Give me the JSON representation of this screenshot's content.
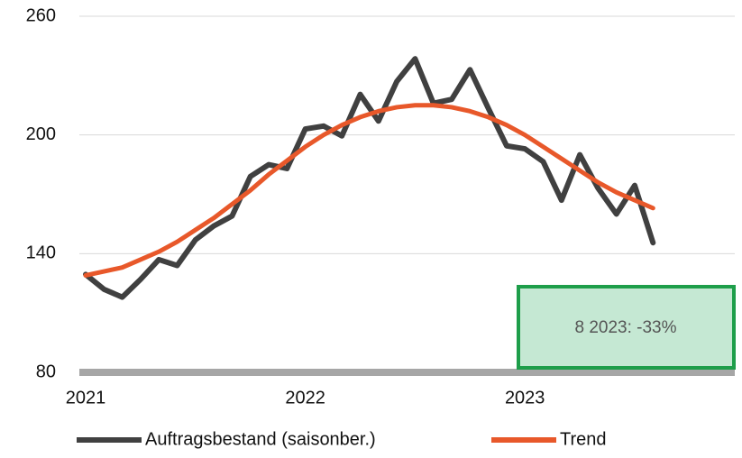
{
  "chart_data": {
    "type": "line",
    "categories": [
      "2021",
      null,
      null,
      null,
      null,
      null,
      null,
      null,
      null,
      null,
      null,
      null,
      "2022",
      null,
      null,
      null,
      null,
      null,
      null,
      null,
      null,
      null,
      null,
      null,
      "2023",
      null,
      null,
      null,
      null,
      null,
      null,
      null
    ],
    "series": [
      {
        "name": "Auftragsbestand (saisonber.)",
        "color": "#404040",
        "values": [
          129.5,
          122,
          118,
          127,
          137,
          134,
          147,
          154,
          159,
          179,
          185,
          183,
          203,
          204.5,
          199.5,
          220.5,
          207,
          227,
          238.5,
          216,
          218,
          233,
          213.5,
          194.5,
          193,
          186.5,
          167,
          190,
          173,
          160,
          174.5,
          145.5
        ]
      },
      {
        "name": "Trend",
        "color": "#e8582a",
        "values": [
          129,
          131,
          133,
          137,
          141,
          146,
          152,
          158,
          165,
          172,
          180,
          187,
          194,
          200,
          205,
          209,
          212,
          214,
          215,
          215,
          214,
          212,
          209,
          205,
          200,
          194,
          188,
          182,
          176,
          171,
          167,
          163
        ]
      }
    ],
    "ylim": [
      80,
      260
    ],
    "yticks": [
      80,
      140,
      200,
      260
    ],
    "grid": true,
    "annotation": "8 2023: -33%"
  }
}
